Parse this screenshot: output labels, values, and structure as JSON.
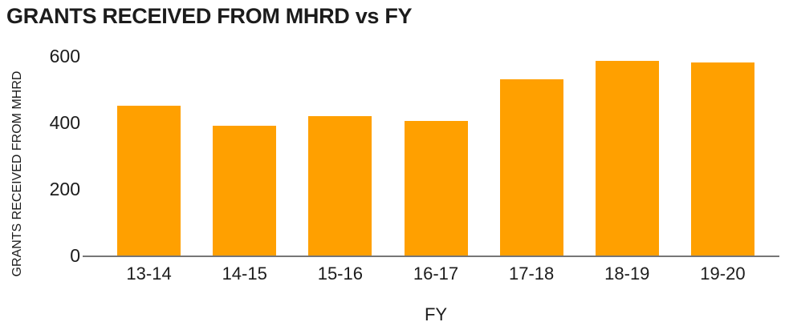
{
  "chart_data": {
    "type": "bar",
    "title": "GRANTS RECEIVED FROM MHRD vs FY",
    "xlabel": "FY",
    "ylabel": "GRANTS RECEIVED FROM MHRD",
    "categories": [
      "13-14",
      "14-15",
      "15-16",
      "16-17",
      "17-18",
      "18-19",
      "19-20"
    ],
    "values": [
      450,
      390,
      420,
      405,
      530,
      585,
      580
    ],
    "yticks": [
      0,
      200,
      400,
      600
    ],
    "ylim": [
      0,
      620
    ],
    "grid": false,
    "legend_visible": false,
    "colors": {
      "bar": "#FFA000",
      "axis_line": "#767676",
      "text": "#1c1c1c",
      "background": "#ffffff"
    }
  }
}
